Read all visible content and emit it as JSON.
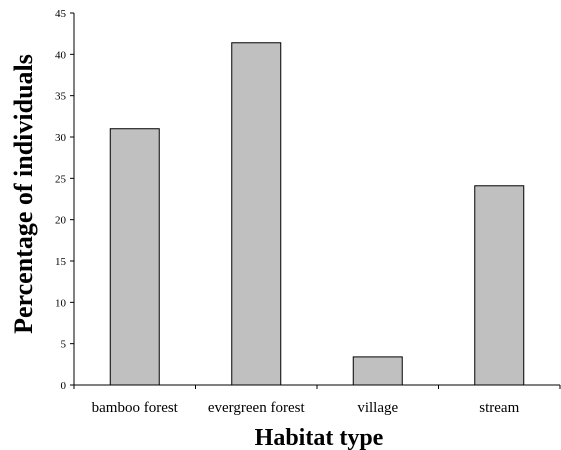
{
  "chart_data": {
    "type": "bar",
    "title": "",
    "xlabel": "Habitat type",
    "ylabel": "Percentage of individuals",
    "categories": [
      "bamboo forest",
      "evergreen forest",
      "village",
      "stream"
    ],
    "values": [
      31.0,
      41.4,
      3.4,
      24.1
    ],
    "ylim": [
      0,
      45
    ],
    "yticks": [
      "0",
      "5",
      "10",
      "15",
      "20",
      "25",
      "30",
      "35",
      "40",
      "45"
    ],
    "grid": false,
    "legend": "none",
    "bar_color": "#c0c0c0",
    "bar_edge_color": "#000000"
  }
}
